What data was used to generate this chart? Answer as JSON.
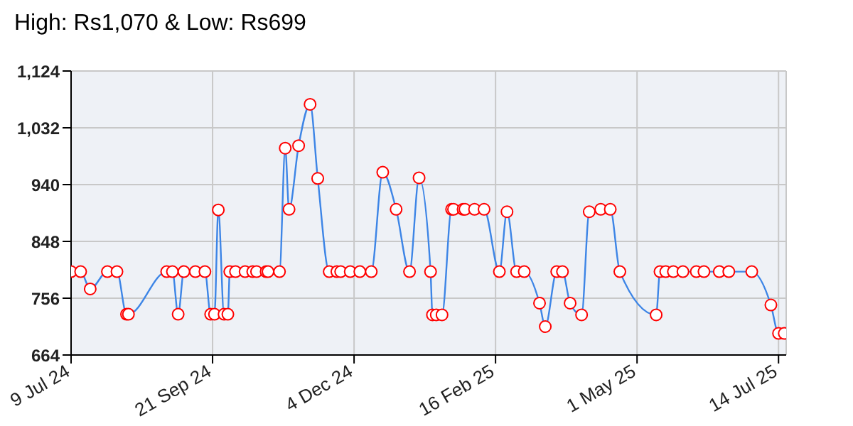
{
  "chart_data": {
    "type": "line",
    "title": "High: Rs1,070 & Low: Rs699",
    "x": [
      "2024-07-09",
      "2024-07-14",
      "2024-07-19",
      "2024-07-28",
      "2024-08-02",
      "2024-08-07",
      "2024-08-08",
      "2024-08-28",
      "2024-08-31",
      "2024-09-03",
      "2024-09-06",
      "2024-09-12",
      "2024-09-17",
      "2024-09-20",
      "2024-09-22",
      "2024-09-24",
      "2024-09-27",
      "2024-09-29",
      "2024-09-30",
      "2024-10-03",
      "2024-10-08",
      "2024-10-12",
      "2024-10-14",
      "2024-10-19",
      "2024-10-20",
      "2024-10-26",
      "2024-10-29",
      "2024-10-31",
      "2024-11-05",
      "2024-11-11",
      "2024-11-15",
      "2024-11-21",
      "2024-11-25",
      "2024-11-27",
      "2024-12-02",
      "2024-12-07",
      "2024-12-13",
      "2024-12-19",
      "2024-12-26",
      "2025-01-02",
      "2025-01-07",
      "2025-01-13",
      "2025-01-14",
      "2025-01-16",
      "2025-01-19",
      "2025-01-24",
      "2025-01-25",
      "2025-01-30",
      "2025-01-31",
      "2025-02-05",
      "2025-02-10",
      "2025-02-18",
      "2025-02-22",
      "2025-02-27",
      "2025-03-03",
      "2025-03-11",
      "2025-03-14",
      "2025-03-20",
      "2025-03-23",
      "2025-03-27",
      "2025-04-02",
      "2025-04-06",
      "2025-04-12",
      "2025-04-17",
      "2025-04-22",
      "2025-05-11",
      "2025-05-13",
      "2025-05-16",
      "2025-05-20",
      "2025-05-25",
      "2025-06-01",
      "2025-06-05",
      "2025-06-13",
      "2025-06-18",
      "2025-06-30",
      "2025-07-10",
      "2025-07-14",
      "2025-07-17"
    ],
    "series": [
      {
        "color": "#3d85e6",
        "values": [
          799,
          799,
          771,
          799,
          799,
          730,
          730,
          799,
          799,
          730,
          799,
          799,
          799,
          730,
          730,
          899,
          730,
          730,
          799,
          799,
          799,
          799,
          799,
          799,
          799,
          799,
          999,
          900,
          1003,
          1070,
          950,
          799,
          799,
          799,
          799,
          799,
          799,
          960,
          900,
          799,
          951,
          799,
          729,
          729,
          729,
          900,
          900,
          900,
          900,
          900,
          900,
          799,
          896,
          799,
          799,
          748,
          710,
          799,
          799,
          748,
          729,
          896,
          900,
          900,
          799,
          729,
          799,
          799,
          799,
          799,
          799,
          799,
          799,
          799,
          799,
          745,
          699,
          699
        ]
      }
    ],
    "xlim": [
      "2024-07-09",
      "2025-07-18"
    ],
    "xticks": [
      {
        "value": "2024-07-09",
        "label": "9 Jul 24"
      },
      {
        "value": "2024-09-21",
        "label": "21 Sep 24"
      },
      {
        "value": "2024-12-04",
        "label": "4 Dec 24"
      },
      {
        "value": "2025-02-16",
        "label": "16 Feb 25"
      },
      {
        "value": "2025-05-01",
        "label": "1 May 25"
      },
      {
        "value": "2025-07-14",
        "label": "14 Jul 25"
      }
    ],
    "ylim": [
      664,
      1124
    ],
    "yticks": [
      664,
      756,
      848,
      940,
      {
        "value": 1032,
        "label": "1,032"
      },
      {
        "value": 1124,
        "label": "1,124"
      }
    ],
    "grid": true,
    "marker": "circle",
    "line_style": "solid"
  }
}
